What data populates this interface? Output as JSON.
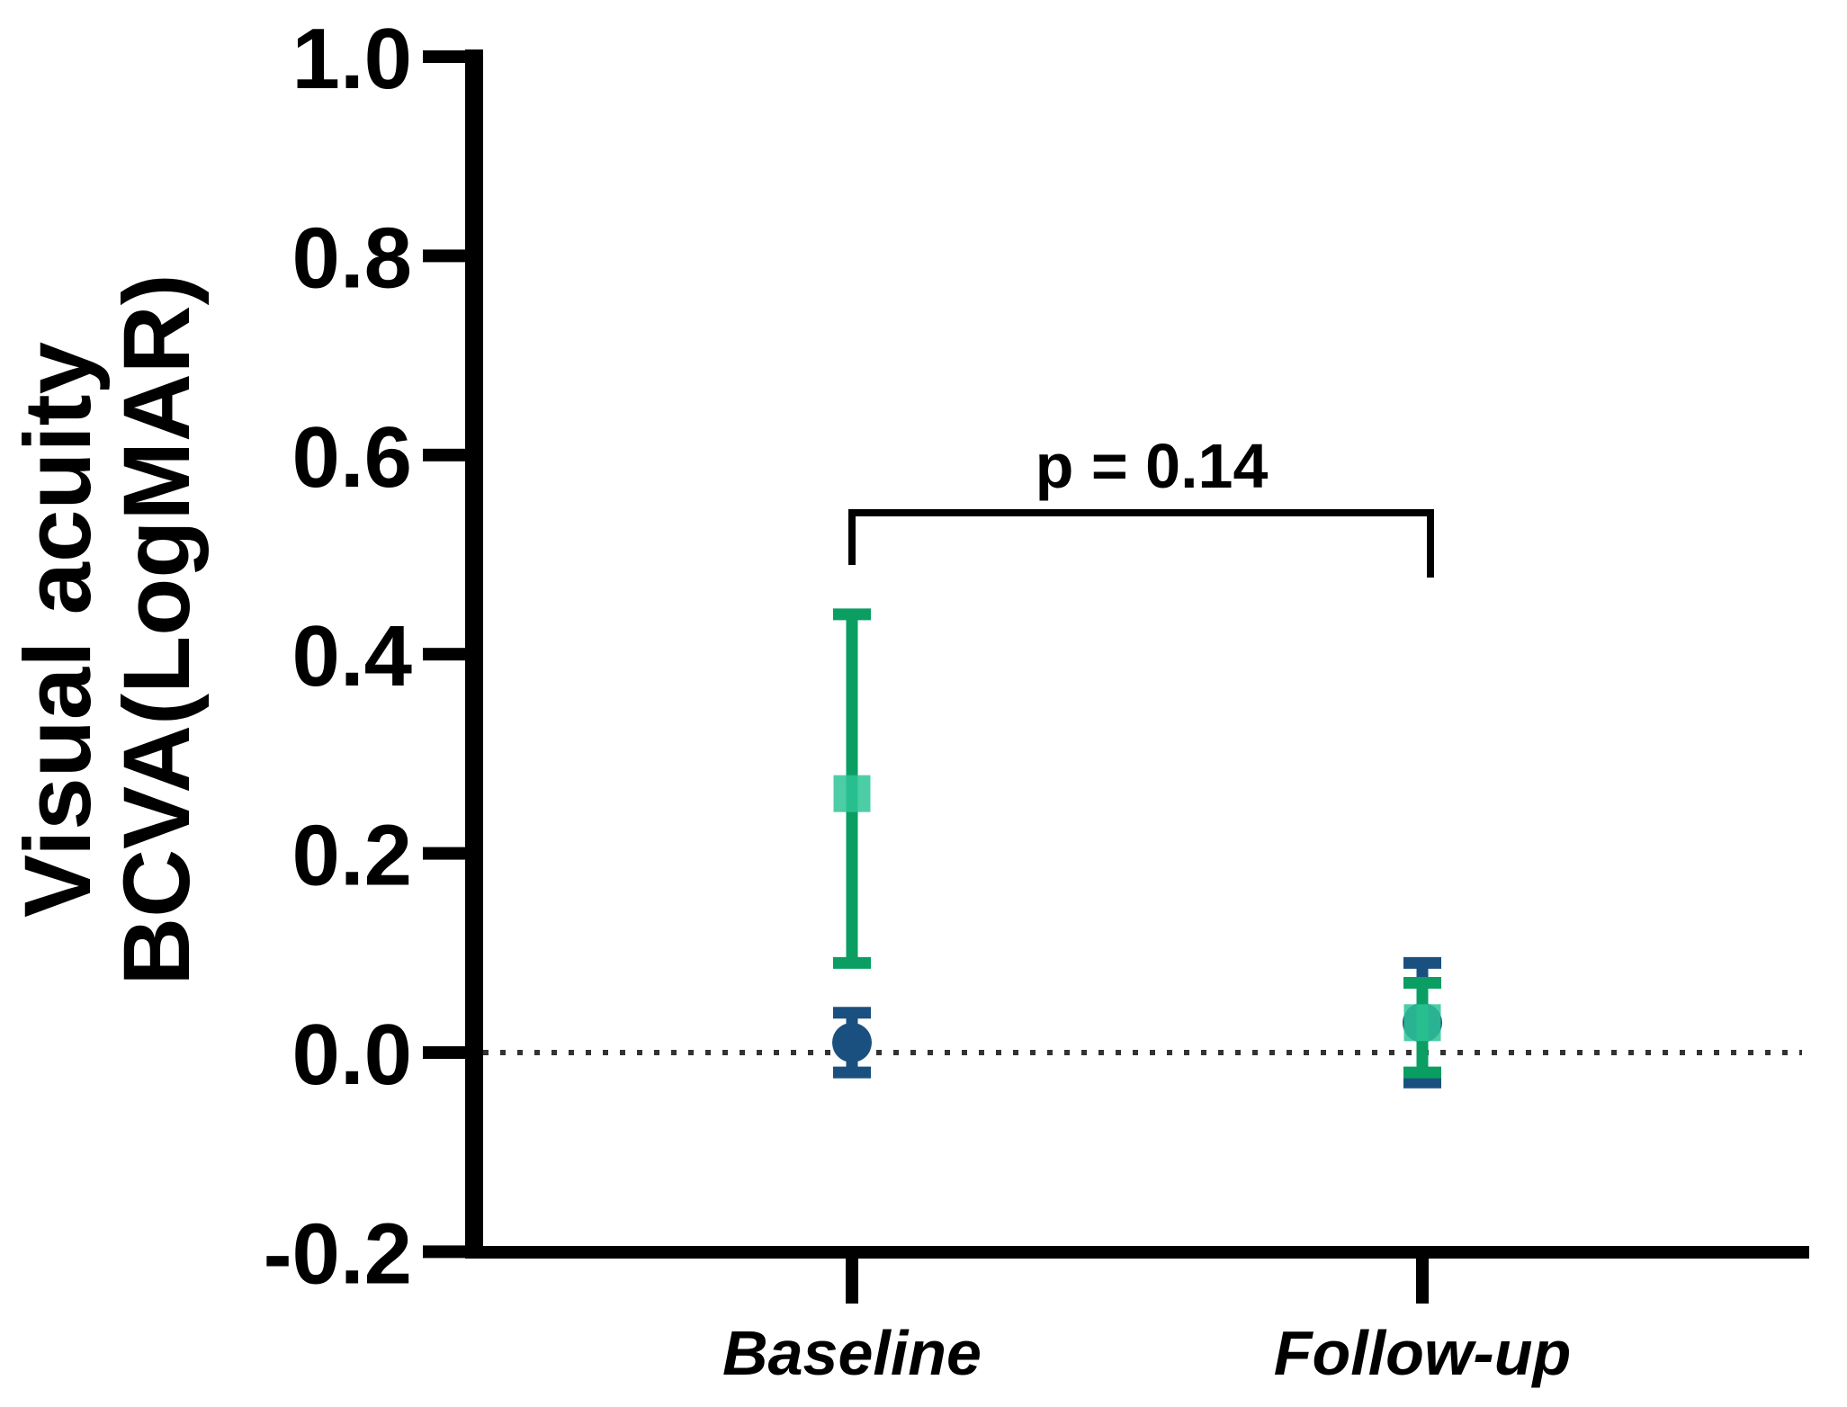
{
  "figure": {
    "background": "#ffffff"
  },
  "chart_data": {
    "type": "scatter",
    "title": "",
    "ylabel_lines": [
      "Visual acuity",
      "BCVA(LogMAR)"
    ],
    "categories": [
      "Baseline",
      "Follow-up"
    ],
    "ylim": [
      -0.2,
      1.0
    ],
    "grid": false,
    "legend": "none",
    "reference_line_y": 0.0,
    "yticks": [
      {
        "value": 1.0,
        "label": "1.0"
      },
      {
        "value": 0.8,
        "label": "0.8"
      },
      {
        "value": 0.6,
        "label": "0.6"
      },
      {
        "value": 0.4,
        "label": "0.4"
      },
      {
        "value": 0.2,
        "label": "0.2"
      },
      {
        "value": 0.0,
        "label": "0.0"
      },
      {
        "value": -0.2,
        "label": "-0.2"
      }
    ],
    "series": [
      {
        "name": "navy-circle-series",
        "marker": "circle",
        "color": "#1A507F",
        "points": [
          {
            "x": "Baseline",
            "mean": 0.01,
            "lower": -0.02,
            "upper": 0.04
          },
          {
            "x": "Follow-up",
            "mean": 0.03,
            "lower": -0.03,
            "upper": 0.09
          }
        ]
      },
      {
        "name": "green-square-series",
        "marker": "square",
        "line_color": "#0A9E63",
        "fill_color": "#2EC497",
        "points": [
          {
            "x": "Baseline",
            "mean": 0.26,
            "lower": 0.09,
            "upper": 0.44
          },
          {
            "x": "Follow-up",
            "mean": 0.03,
            "lower": -0.02,
            "upper": 0.07
          }
        ]
      }
    ],
    "annotation": {
      "text": "p = 0.14",
      "between": [
        "Baseline",
        "Follow-up"
      ]
    },
    "colors": {
      "axis": "#000000",
      "reference_line": "#333333"
    }
  }
}
